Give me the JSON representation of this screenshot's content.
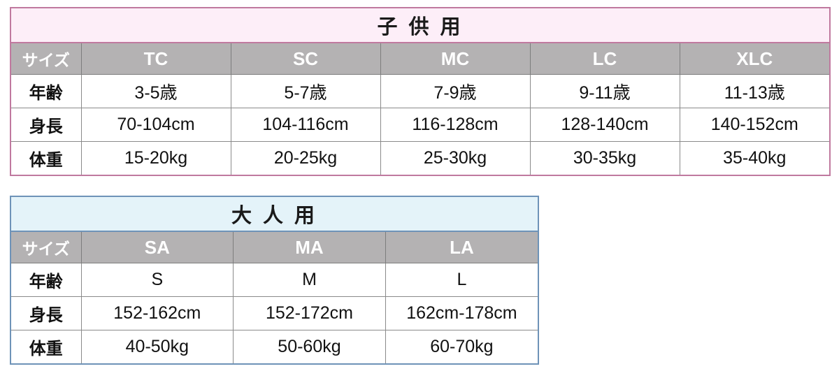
{
  "colors": {
    "child_border": "#c0799f",
    "child_title_bg": "#fdeef8",
    "adult_border": "#6e93b8",
    "adult_title_bg": "#e4f3f9",
    "header_row_bg": "#b4b2b3",
    "header_row_text": "#ffffff",
    "inner_grid": "#8a8a8a",
    "body_text": "#111111"
  },
  "chart_data": [
    {
      "type": "table",
      "title": "子 供 用",
      "corner_header": "サイズ",
      "columns": [
        "TC",
        "SC",
        "MC",
        "LC",
        "XLC"
      ],
      "rows": [
        {
          "label": "年齢",
          "values": [
            "3-5歳",
            "5-7歳",
            "7-9歳",
            "9-11歳",
            "11-13歳"
          ]
        },
        {
          "label": "身長",
          "values": [
            "70-104cm",
            "104-116cm",
            "116-128cm",
            "128-140cm",
            "140-152cm"
          ]
        },
        {
          "label": "体重",
          "values": [
            "15-20kg",
            "20-25kg",
            "25-30kg",
            "30-35kg",
            "35-40kg"
          ]
        }
      ]
    },
    {
      "type": "table",
      "title": "大 人 用",
      "corner_header": "サイズ",
      "columns": [
        "SA",
        "MA",
        "LA"
      ],
      "rows": [
        {
          "label": "年齢",
          "values": [
            "S",
            "M",
            "L"
          ]
        },
        {
          "label": "身長",
          "values": [
            "152-162cm",
            "152-172cm",
            "162cm-178cm"
          ]
        },
        {
          "label": "体重",
          "values": [
            "40-50kg",
            "50-60kg",
            "60-70kg"
          ]
        }
      ]
    }
  ]
}
